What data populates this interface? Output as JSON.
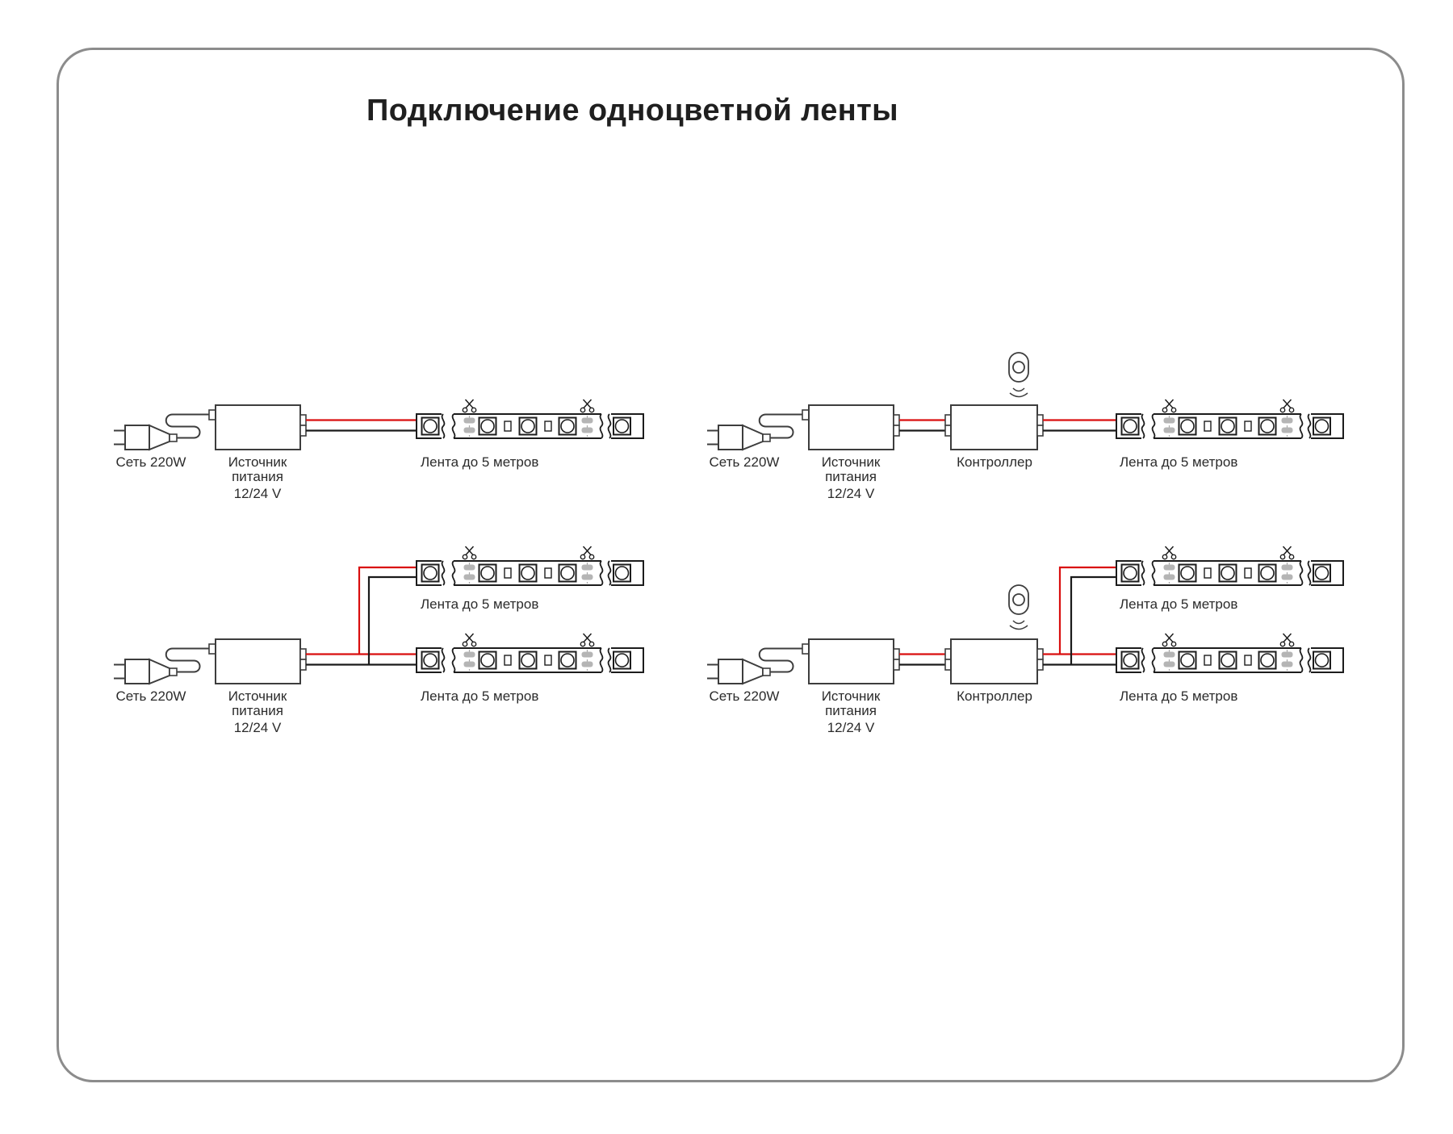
{
  "title": "Подключение одноцветной ленты",
  "colors": {
    "frame_border": "#8c8c8c",
    "title_text": "#1f1f1f",
    "label_text": "#2b2b2b",
    "outline_dark": "#3d3d3d",
    "strip_outline": "#1c1c1c",
    "wire_red": "#d90f0f",
    "wire_black": "#1a1a1a",
    "pad_gray": "#b5b5b5",
    "cut_line": "#a8a8a8"
  },
  "icons": {
    "scissors": "cut-here-scissors",
    "remote": "wireless-remote",
    "signal_waves": "signal-waves"
  },
  "diagrams": [
    {
      "name": "strip-direct",
      "labels": {
        "net": "Сеть 220W",
        "psu_line1": "Источник",
        "psu_line2": "питания",
        "voltage": "12/24 V",
        "strip": "Лента до 5 метров"
      }
    },
    {
      "name": "strip-with-controller",
      "labels": {
        "net": "Сеть 220W",
        "psu_line1": "Источник",
        "psu_line2": "питания",
        "voltage": "12/24 V",
        "controller": "Контроллер",
        "strip": "Лента до 5 метров"
      }
    },
    {
      "name": "two-strips-direct",
      "labels": {
        "net": "Сеть 220W",
        "psu_line1": "Источник",
        "psu_line2": "питания",
        "voltage": "12/24 V",
        "strip_top": "Лента до 5 метров",
        "strip_bottom": "Лента до 5 метров"
      }
    },
    {
      "name": "two-strips-with-controller",
      "labels": {
        "net": "Сеть 220W",
        "psu_line1": "Источник",
        "psu_line2": "питания",
        "voltage": "12/24 V",
        "controller": "Контроллер",
        "strip_top": "Лента до 5 метров",
        "strip_bottom": "Лента до 5 метров"
      }
    }
  ]
}
